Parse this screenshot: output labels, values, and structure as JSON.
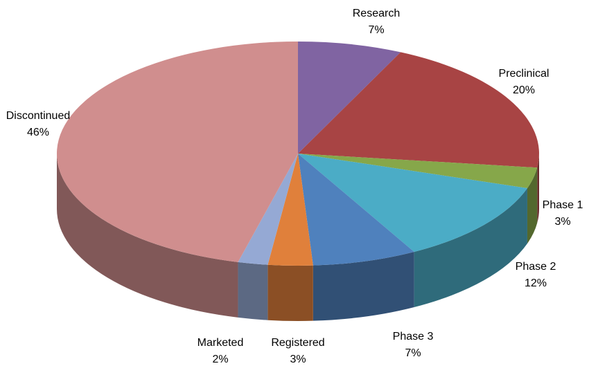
{
  "chart_data": {
    "type": "pie",
    "categories": [
      "Research",
      "Preclinical",
      "Phase 1",
      "Phase 2",
      "Phase 3",
      "Registered",
      "Marketed",
      "Discontinued"
    ],
    "values": [
      7,
      20,
      3,
      12,
      7,
      3,
      2,
      46
    ],
    "value_labels": [
      "7%",
      "20%",
      "3%",
      "12%",
      "7%",
      "3%",
      "2%",
      "46%"
    ],
    "colors": [
      "#8064a2",
      "#a84444",
      "#86a74a",
      "#4bacc6",
      "#4f81bd",
      "#e0803b",
      "#95a9d4",
      "#d08e8e"
    ]
  }
}
